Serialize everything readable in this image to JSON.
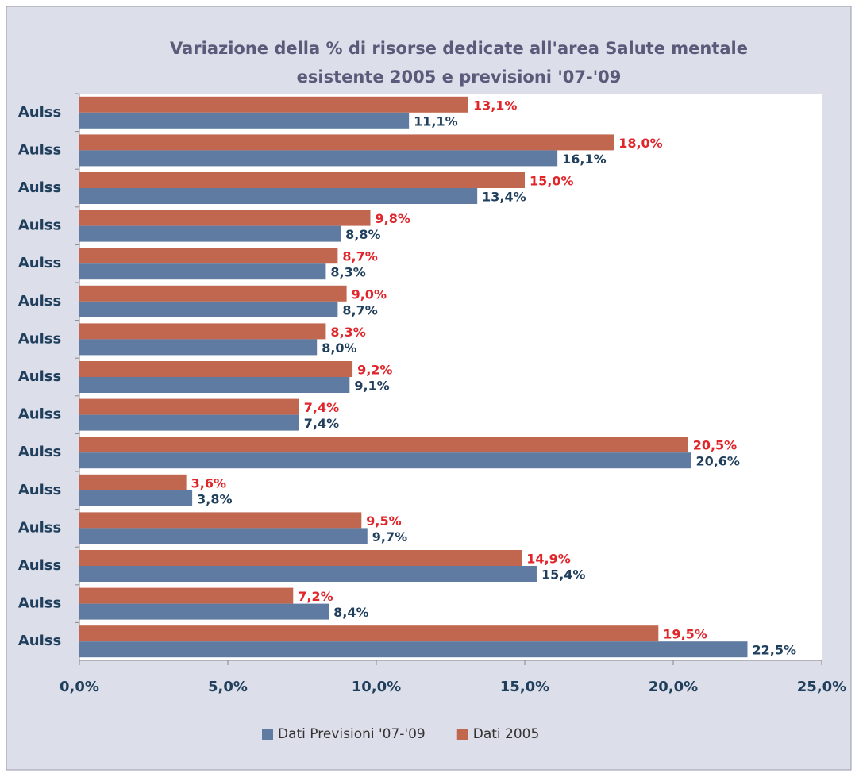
{
  "chart_data": {
    "type": "hbar",
    "title": "Variazione della % di risorse dedicate all'area Salute mentale esistente 2005 e previsioni '07-'09",
    "categories": [
      "Aulss",
      "Aulss",
      "Aulss",
      "Aulss",
      "Aulss",
      "Aulss",
      "Aulss",
      "Aulss",
      "Aulss",
      "Aulss",
      "Aulss",
      "Aulss",
      "Aulss",
      "Aulss",
      "Aulss"
    ],
    "series": [
      {
        "name": "Dati Previsioni '07-'09",
        "color": "#5f7ba1",
        "label_color": "#1f3f5c",
        "values": [
          11.1,
          16.1,
          13.4,
          8.8,
          8.3,
          8.7,
          8.0,
          9.1,
          7.4,
          20.6,
          3.8,
          9.7,
          15.4,
          8.4,
          22.5
        ],
        "value_labels": [
          "11,1%",
          "16,1%",
          "13,4%",
          "8,8%",
          "8,3%",
          "8,7%",
          "8,0%",
          "9,1%",
          "7,4%",
          "20,6%",
          "3,8%",
          "9,7%",
          "15,4%",
          "8,4%",
          "22,5%"
        ]
      },
      {
        "name": "Dati 2005",
        "color": "#c2674f",
        "label_color": "#e0262b",
        "values": [
          13.1,
          18.0,
          15.0,
          9.8,
          8.7,
          9.0,
          8.3,
          9.2,
          7.4,
          20.5,
          3.6,
          9.5,
          14.9,
          7.2,
          19.5
        ],
        "value_labels": [
          "13,1%",
          "18,0%",
          "15,0%",
          "9,8%",
          "8,7%",
          "9,0%",
          "8,3%",
          "9,2%",
          "7,4%",
          "20,5%",
          "3,6%",
          "9,5%",
          "14,9%",
          "7,2%",
          "19,5%"
        ]
      }
    ],
    "xlim": [
      0,
      25
    ],
    "xticks": [
      {
        "value": 0,
        "label": "0,0%"
      },
      {
        "value": 5,
        "label": "5,0%"
      },
      {
        "value": 10,
        "label": "10,0%"
      },
      {
        "value": 15,
        "label": "15,0%"
      },
      {
        "value": 20,
        "label": "20,0%"
      },
      {
        "value": 25,
        "label": "25,0%"
      }
    ],
    "grid": false,
    "legend": "bottom"
  }
}
